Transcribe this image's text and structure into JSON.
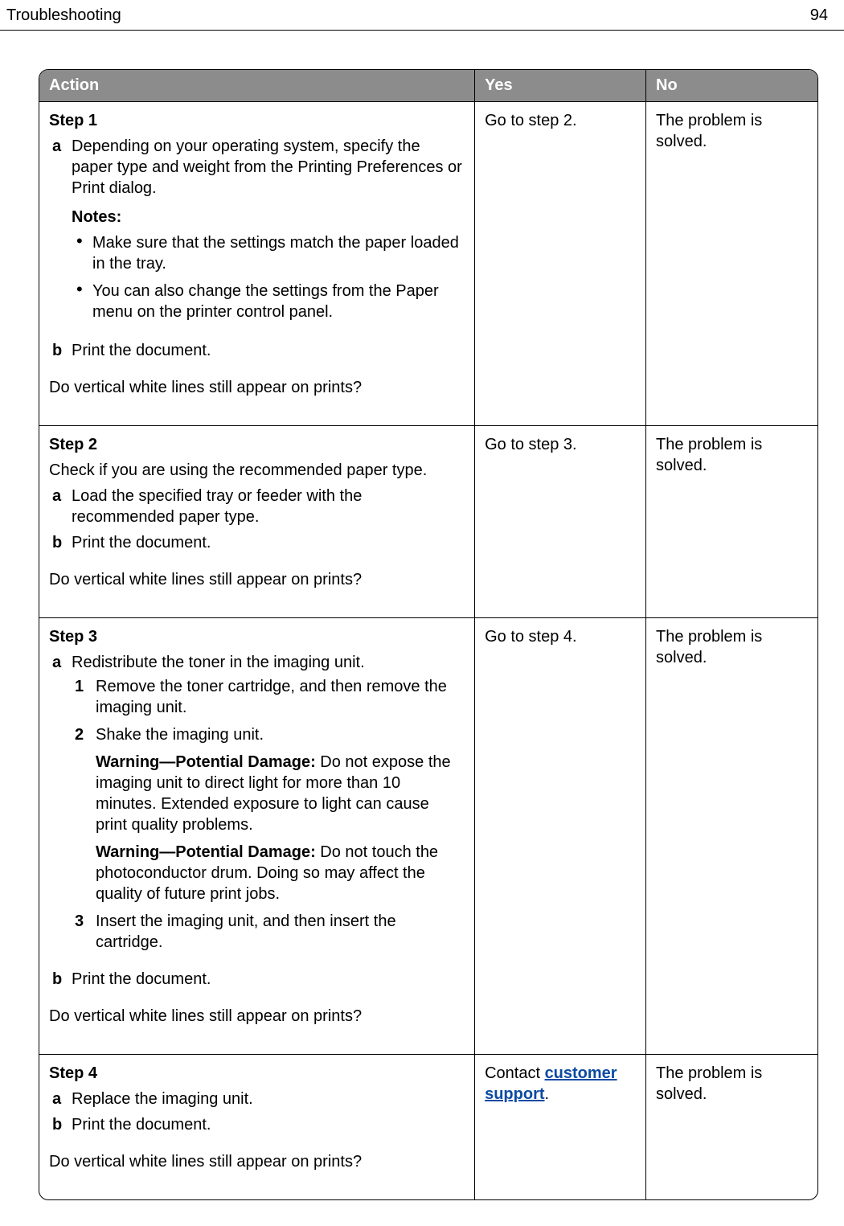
{
  "page": {
    "title": "Troubleshooting",
    "number": "94"
  },
  "table": {
    "headers": {
      "action": "Action",
      "yes": "Yes",
      "no": "No"
    },
    "col_widths_pct": [
      56,
      22,
      22
    ],
    "header_bg": "#8c8c8c",
    "header_fg": "#ffffff",
    "border_color": "#000000",
    "rows": [
      {
        "step_label": "Step 1",
        "alpha": [
          {
            "marker": "a",
            "text": "Depending on your operating system, specify the paper type and weight from the Printing Preferences or Print dialog.",
            "notes_label": "Notes:",
            "notes": [
              "Make sure that the settings match the paper loaded in the tray.",
              "You can also change the settings from the Paper menu on the printer control panel."
            ]
          },
          {
            "marker": "b",
            "text": "Print the document."
          }
        ],
        "question": "Do vertical white lines still appear on prints?",
        "yes_text": "Go to step 2.",
        "no_text": "The problem is solved."
      },
      {
        "step_label": "Step 2",
        "intro": "Check if you are using the recommended paper type.",
        "alpha": [
          {
            "marker": "a",
            "text": "Load the specified tray or feeder with the recommended paper type."
          },
          {
            "marker": "b",
            "text": "Print the document."
          }
        ],
        "question": "Do vertical white lines still appear on prints?",
        "yes_text": "Go to step 3.",
        "no_text": "The problem is solved."
      },
      {
        "step_label": "Step 3",
        "alpha": [
          {
            "marker": "a",
            "text": "Redistribute the toner in the imaging unit.",
            "nums": [
              {
                "marker": "1",
                "text": "Remove the toner cartridge, and then remove the imaging unit."
              },
              {
                "marker": "2",
                "text": "Shake the imaging unit.",
                "warnings": [
                  {
                    "label": "Warning—Potential Damage:",
                    "text": " Do not expose the imaging unit to direct light for more than 10 minutes. Extended exposure to light can cause print quality problems."
                  },
                  {
                    "label": "Warning—Potential Damage:",
                    "text": " Do not touch the photoconductor drum. Doing so may affect the quality of future print jobs."
                  }
                ]
              },
              {
                "marker": "3",
                "text": "Insert the imaging unit, and then insert the cartridge."
              }
            ]
          },
          {
            "marker": "b",
            "text": "Print the document."
          }
        ],
        "question": "Do vertical white lines still appear on prints?",
        "yes_text": "Go to step 4.",
        "no_text": "The problem is solved."
      },
      {
        "step_label": "Step 4",
        "alpha": [
          {
            "marker": "a",
            "text": "Replace the imaging unit."
          },
          {
            "marker": "b",
            "text": "Print the document."
          }
        ],
        "question": "Do vertical white lines still appear on prints?",
        "yes_prefix": "Contact ",
        "yes_link": "customer support",
        "yes_suffix": ".",
        "no_text": "The problem is solved."
      }
    ]
  }
}
